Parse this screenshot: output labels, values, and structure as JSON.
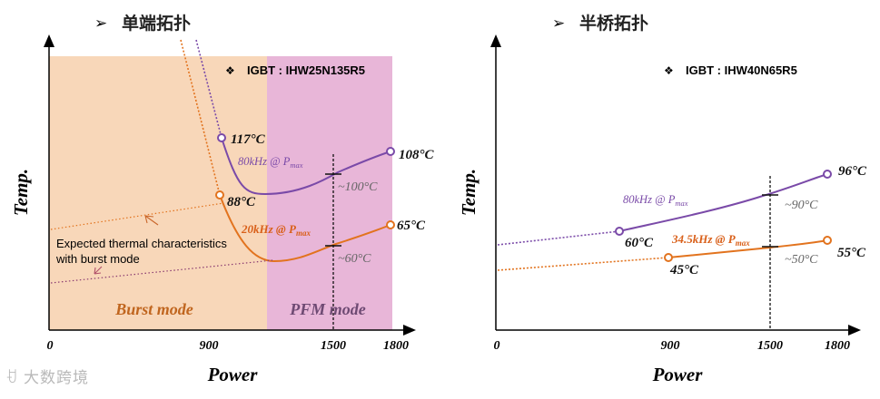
{
  "chart_data": [
    {
      "type": "line",
      "heading": "单端拓扑",
      "igbt_label": "IGBT : IHW25N135R5",
      "xlabel": "Power",
      "ylabel": "Temp.",
      "x_ticks": [
        "0",
        "900",
        "1500",
        "1800"
      ],
      "xlim": [
        0,
        1800
      ],
      "regions": [
        {
          "name": "Burst mode",
          "x_range": [
            0,
            1130
          ],
          "color": "#f8d7b9"
        },
        {
          "name": "PFM mode",
          "x_range": [
            1130,
            1800
          ],
          "color": "#e8b6d8"
        }
      ],
      "series": [
        {
          "name": "80kHz @ P",
          "sub": "max",
          "color": "#7a4aa8",
          "x": [
            900,
            1130,
            1500,
            1800
          ],
          "y": [
            117,
            102,
            100,
            108
          ],
          "start_label": "117°C",
          "end_label": "108°C",
          "mid_label": "~100°C"
        },
        {
          "name": "20kHz @ P",
          "sub": "max",
          "color": "#e2731e",
          "x": [
            900,
            1200,
            1500,
            1800
          ],
          "y": [
            88,
            57,
            60,
            65
          ],
          "start_label": "88°C",
          "end_label": "65°C",
          "mid_label": "~60°C"
        }
      ],
      "annotation": {
        "line1": "Expected thermal characteristics",
        "line2": "with burst mode"
      },
      "marker_x": 1500,
      "colors": {
        "purple": "#7a4aa8",
        "orange": "#e2731e",
        "mark": "#555555"
      }
    },
    {
      "type": "line",
      "heading": "半桥拓扑",
      "igbt_label": "IGBT : IHW40N65R5",
      "xlabel": "Power",
      "ylabel": "Temp.",
      "x_ticks": [
        "0",
        "900",
        "1500",
        "1800"
      ],
      "xlim": [
        0,
        1800
      ],
      "series": [
        {
          "name": "80kHz @ P",
          "sub": "max",
          "color": "#7a4aa8",
          "x": [
            0,
            600,
            1200,
            1500,
            1800
          ],
          "y": [
            52,
            60,
            72,
            86,
            96
          ],
          "start_label": "60°C",
          "end_label": "96°C",
          "mid_label": "~90°C"
        },
        {
          "name": "34.5kHz @ P",
          "sub": "max",
          "color": "#e2731e",
          "x": [
            0,
            900,
            1500,
            1800
          ],
          "y": [
            38,
            45,
            51,
            55
          ],
          "start_label": "45°C",
          "end_label": "55°C",
          "mid_label": "~50°C"
        }
      ],
      "marker_x": 1500,
      "colors": {
        "purple": "#7a4aa8",
        "orange": "#e2731e",
        "mark": "#555555"
      }
    }
  ],
  "watermark": "大数跨境"
}
